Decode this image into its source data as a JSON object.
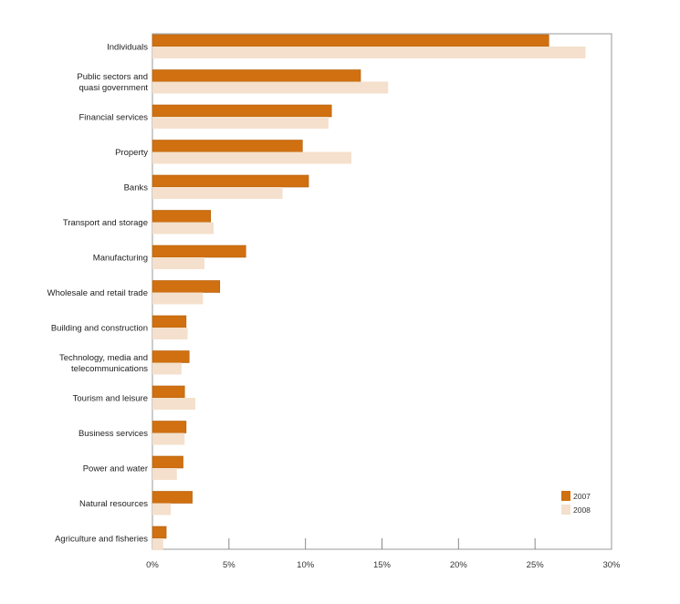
{
  "chart_data": {
    "type": "bar",
    "orientation": "horizontal",
    "categories": [
      [
        "Individuals"
      ],
      [
        "Public sectors and",
        "quasi government"
      ],
      [
        "Financial services"
      ],
      [
        "Property"
      ],
      [
        "Banks"
      ],
      [
        "Transport and storage"
      ],
      [
        "Manufacturing"
      ],
      [
        "Wholesale and retail trade"
      ],
      [
        "Building and construction"
      ],
      [
        "Technology, media and",
        "telecommunications"
      ],
      [
        "Tourism and leisure"
      ],
      [
        "Business services"
      ],
      [
        "Power and water"
      ],
      [
        "Natural resources"
      ],
      [
        "Agriculture and fisheries"
      ]
    ],
    "series": [
      {
        "name": "2007",
        "color": "#d07010",
        "values": [
          25.9,
          13.6,
          11.7,
          9.8,
          10.2,
          3.8,
          6.1,
          4.4,
          2.2,
          2.4,
          2.1,
          2.2,
          2.0,
          2.6,
          0.9
        ]
      },
      {
        "name": "2008",
        "color": "#f4e0cc",
        "values": [
          28.3,
          15.4,
          11.5,
          13.0,
          8.5,
          4.0,
          3.4,
          3.3,
          2.3,
          1.9,
          2.8,
          2.1,
          1.6,
          1.2,
          0.7
        ]
      }
    ],
    "xlim": [
      0,
      30
    ],
    "xticks": [
      "0%",
      "5%",
      "10%",
      "15%",
      "20%",
      "25%",
      "30%"
    ],
    "xtick_values": [
      0,
      5,
      10,
      15,
      20,
      25,
      30
    ],
    "grid": false,
    "legend_position": "bottom-right"
  }
}
